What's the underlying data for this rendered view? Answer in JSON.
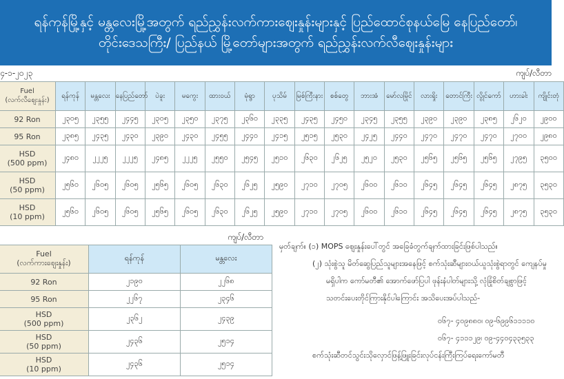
{
  "banner": {
    "line1": "ရန်ကုန်မြို့နှင့် မန္တလေးမြို့အတွက် ရည်ညွှန်းလက်ကားဈေးနှုန်းများနှင့် ပြည်ထောင်စုနယ်မြေ နေပြည်တော်၊",
    "line2": "တိုင်းဒေသကြီး/ ပြည်နယ် မြို့တော်များအတွက် ရည်ညွှန်းလက်လီဈေးနှုန်းများ"
  },
  "date": "၄-၁-၂၀၂၃",
  "unit": "ကျပ်/လီတာ",
  "retail": {
    "fuel_header": "Fuel",
    "fuel_sub": "(လက်လီဈေးနှုန်း)",
    "cities": [
      "ရန်ကုန်",
      "မန္တလေး",
      "နေပြည်တော်",
      "ပဲခူး",
      "မကွေး",
      "ထားဝယ်",
      "မုံရွာ",
      "ပုသိမ်",
      "မြစ်ကြီးနား",
      "စစ်တွေ",
      "ဘားအံ",
      "မော်လမြိုင်",
      "လားရှိုး",
      "တောင်ကြီး",
      "လွိုင်ကော်",
      "ဟားခါး",
      "ကျိုင်းတုံ"
    ],
    "rows": [
      {
        "fuel": "92 Ron",
        "values": [
          "၂၃၀၅",
          "၂၃၅၅",
          "၂၄၄၅",
          "၂၃၀၅",
          "၂၃၅၀",
          "၂၃၇၅",
          "၂၃၆၀",
          "၂၃၃၅",
          "၂၄၃၅",
          "၂၄၅၀",
          "၂၃၄၅",
          "၂၃၅၅",
          "၂၃၉၀",
          "၂၃၉၀",
          "၂၃၈၅",
          "၂၆၂၀",
          "၂၉၀၀"
        ]
      },
      {
        "fuel": "95 Ron",
        "values": [
          "၂၃၈၅",
          "၂၄၃၅",
          "၂၄၃၀",
          "၂၃၉၀",
          "၂၄၃၀",
          "၂၄၅၅",
          "၂၄၄၀",
          "၂၄၁၅",
          "၂၅၁၅",
          "၂၅၃၀",
          "၂၄၂၅",
          "၂၄၄၀",
          "၂၄၇၀",
          "၂၄၇၀",
          "၂၄၇၀",
          "၂၇၀၀",
          "၂၉၈၀"
        ]
      },
      {
        "fuel": "HSD",
        "fuel_sub": "(500 ppm)",
        "values": [
          "၂၄၈၀",
          "၂၂၂၅",
          "၂၂၂၅",
          "၂၄၈၅",
          "၂၂၂၅",
          "၂၅၅၀",
          "၂၅၄၅",
          "၂၅၁၀",
          "၂၆၃၀",
          "၂၆၂၅",
          "၂၅၂၀",
          "၂၅၃၀",
          "၂၅၆၅",
          "၂၅၆၅",
          "၂၅၆၅",
          "၂၇၉၅",
          "၃၅၀၀"
        ]
      },
      {
        "fuel": "HSD",
        "fuel_sub": "(50 ppm)",
        "values": [
          "၂၅၆၀",
          "၂၆၀၅",
          "၂၆၀၅",
          "၂၅၆၅",
          "၂၆၀၅",
          "၂၆၃၀",
          "၂၆၂၅",
          "၂၅၉၀",
          "၂၇၁၀",
          "၂၇၀၅",
          "၂၆၀၀",
          "၂၆၁၀",
          "၂၆၄၅",
          "၂၆၄၅",
          "၂၆၄၅",
          "၂၈၇၅",
          "၃၅၃၀"
        ]
      },
      {
        "fuel": "HSD",
        "fuel_sub": "(10 ppm)",
        "values": [
          "၂၅၆၀",
          "၂၆၀၅",
          "၂၆၀၅",
          "၂၅၆၅",
          "၂၆၀၅",
          "၂၆၃၀",
          "၂၆၂၅",
          "၂၅၉၀",
          "၂၇၁၀",
          "၂၇၀၅",
          "၂၆၀၀",
          "၂၆၁၀",
          "၂၆၄၅",
          "၂၆၄၅",
          "၂၆၄၅",
          "၂၈၇၅",
          "၃၅၃၀"
        ]
      }
    ]
  },
  "wholesale": {
    "fuel_header": "Fuel",
    "fuel_sub": "(လက်ကားဈေးနှုန်း)",
    "cities": [
      "ရန်ကုန်",
      "မန္တလေး"
    ],
    "rows": [
      {
        "fuel": "92 Ron",
        "values": [
          "၂၁၉၀",
          "၂၂၆၈"
        ]
      },
      {
        "fuel": "95 Ron",
        "values": [
          "၂၂၆၇",
          "၂၃၄၆"
        ]
      },
      {
        "fuel": "HSD",
        "fuel_sub": "(500 ppm)",
        "values": [
          "၂၃၆၂",
          "၂၄၃၉"
        ]
      },
      {
        "fuel": "HSD",
        "fuel_sub": "(50 ppm)",
        "values": [
          "၂၄၃၆",
          "၂၅၁၄"
        ]
      },
      {
        "fuel": "HSD",
        "fuel_sub": "(10 ppm)",
        "values": [
          "၂၄၃၆",
          "၂၅၁၄"
        ]
      }
    ]
  },
  "notes": {
    "n1": "မှတ်ချက်။ (၁)  MOPS ဈေးနှုန်းပေါ်တွင် အခြေခံတွက်ချက်ထားခြင်းဖြစ်ပါသည်။",
    "n2a": "(၂)  သုံးစွဲသူ မိတ်ဆွေပြည်သူများအနေဖြင့် စက်သုံးဆီများဝယ်ယူသုံးစွဲရာတွင် ကျေနပ်မှု",
    "n2b": "မရှိပါက  ကော်မတီ၏ အောက်ဖော်ပြပါ ဖုန်းနံပါတ်များသို့ လုံခြုံစိတ်ချစွာဖြင့်",
    "n2c": "သတင်းပေးတိုင်ကြားနိုင်ပါကြောင်း အသိပေးအပ်ပါသည်-",
    "phone1": "၀၆၇- ၄၀၉၈၈၀၊ ၀၉-၆၉၉၆၁၁၁၁၀",
    "phone2": "၀၆၇- ၄၁၁၁၂၉၊ ၀၉-၄၄၀၄၃၃၅၃၃",
    "footer": "စက်သုံးဆီတင်သွင်းသိုလှောင်ဖြန့်ဖြူးခြင်းလုပ်ငန်းကြီးကြပ်ရေးကော်မတီ"
  }
}
